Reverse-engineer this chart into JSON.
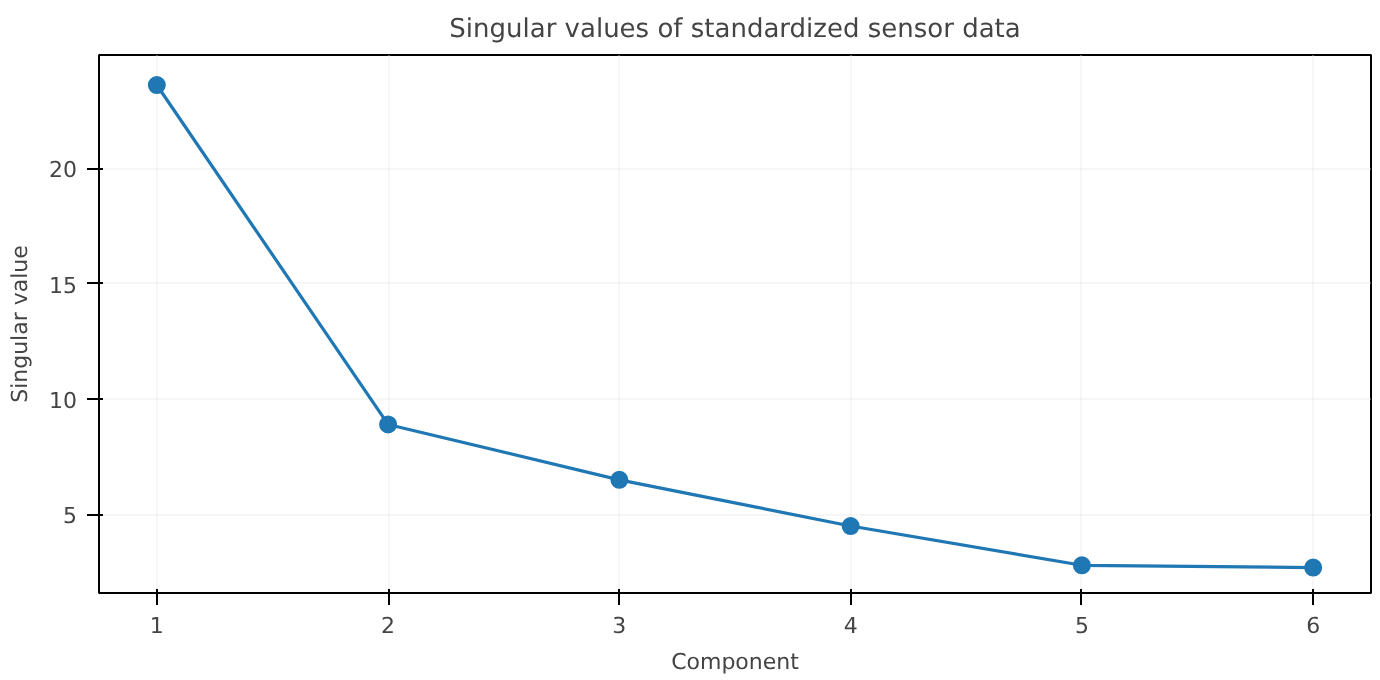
{
  "chart_data": {
    "type": "line",
    "title": "Singular values of standardized sensor data",
    "xlabel": "Component",
    "ylabel": "Singular value",
    "x": [
      1,
      2,
      3,
      4,
      5,
      6
    ],
    "series": [
      {
        "color": "#1f77b4",
        "values": [
          23.6,
          8.9,
          6.5,
          4.5,
          2.8,
          2.7
        ]
      }
    ],
    "xlim": [
      0.75,
      6.25
    ],
    "xticks": [
      1,
      2,
      3,
      4,
      5,
      6
    ],
    "ylim": [
      1.6,
      24.9
    ],
    "yticks": [
      5,
      10,
      15,
      20
    ],
    "grid": true,
    "marker": "circle",
    "line_style": "solid"
  }
}
